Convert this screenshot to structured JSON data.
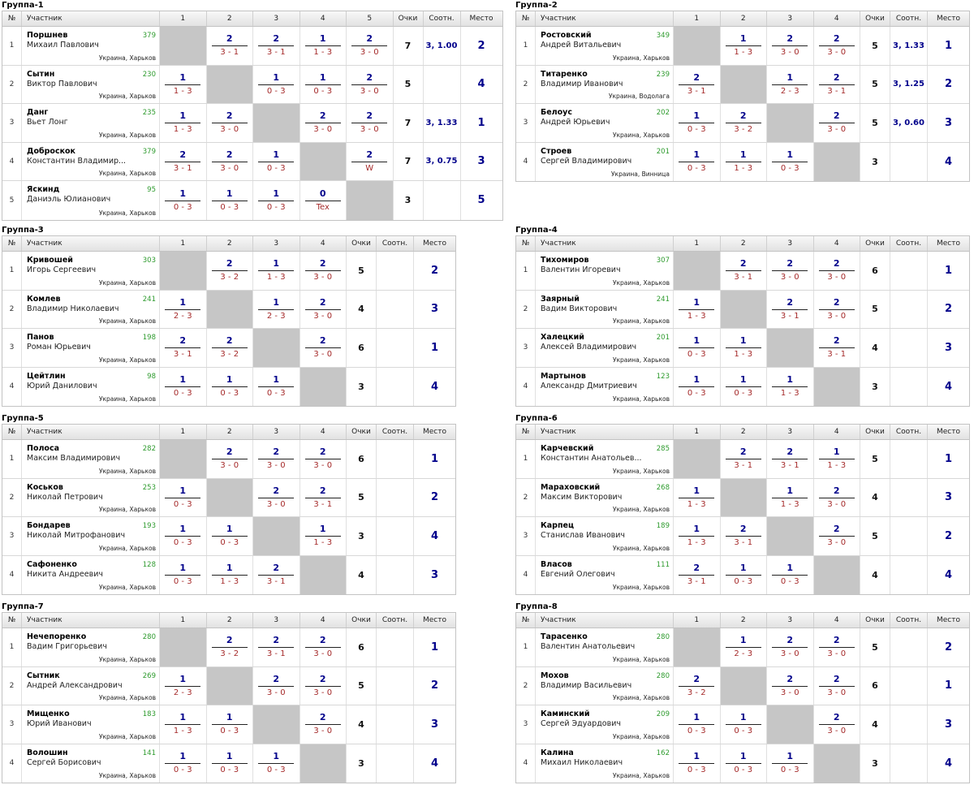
{
  "headers": {
    "num": "№",
    "participant": "Участник",
    "points": "Очки",
    "ratio": "Соотн.",
    "place": "Место"
  },
  "groups": [
    {
      "title": "Группа-1",
      "players": [
        {
          "num": "1",
          "surname": "Поршнев",
          "name": "Михаил Павлович",
          "rating": "379",
          "city": "Украина, Харьков",
          "games": [
            null,
            {
              "p": "2",
              "s": "3 - 1"
            },
            {
              "p": "2",
              "s": "3 - 1"
            },
            {
              "p": "1",
              "s": "1 - 3"
            },
            {
              "p": "2",
              "s": "3 - 0"
            }
          ],
          "points": "7",
          "ratio": "3, 1.00",
          "place": "2"
        },
        {
          "num": "2",
          "surname": "Сытин",
          "name": "Виктор Павлович",
          "rating": "230",
          "city": "Украина, Харьков",
          "games": [
            {
              "p": "1",
              "s": "1 - 3"
            },
            null,
            {
              "p": "1",
              "s": "0 - 3"
            },
            {
              "p": "1",
              "s": "0 - 3"
            },
            {
              "p": "2",
              "s": "3 - 0"
            }
          ],
          "points": "5",
          "ratio": "",
          "place": "4"
        },
        {
          "num": "3",
          "surname": "Данг",
          "name": "Вьет Лонг",
          "rating": "235",
          "city": "Украина, Харьков",
          "games": [
            {
              "p": "1",
              "s": "1 - 3"
            },
            {
              "p": "2",
              "s": "3 - 0"
            },
            null,
            {
              "p": "2",
              "s": "3 - 0"
            },
            {
              "p": "2",
              "s": "3 - 0"
            }
          ],
          "points": "7",
          "ratio": "3, 1.33",
          "place": "1"
        },
        {
          "num": "4",
          "surname": "Доброскок",
          "name": "Константин Владимир...",
          "rating": "379",
          "city": "Украина, Харьков",
          "games": [
            {
              "p": "2",
              "s": "3 - 1"
            },
            {
              "p": "2",
              "s": "3 - 0"
            },
            {
              "p": "1",
              "s": "0 - 3"
            },
            null,
            {
              "p": "2",
              "s": "W"
            }
          ],
          "points": "7",
          "ratio": "3, 0.75",
          "place": "3"
        },
        {
          "num": "5",
          "surname": "Яскинд",
          "name": "Даниэль Юлианович",
          "rating": "95",
          "city": "Украина, Харьков",
          "games": [
            {
              "p": "1",
              "s": "0 - 3"
            },
            {
              "p": "1",
              "s": "0 - 3"
            },
            {
              "p": "1",
              "s": "0 - 3"
            },
            {
              "p": "0",
              "s": "Tex"
            },
            null
          ],
          "points": "3",
          "ratio": "",
          "place": "5"
        }
      ]
    },
    {
      "title": "Группа-2",
      "players": [
        {
          "num": "1",
          "surname": "Ростовский",
          "name": "Андрей Витальевич",
          "rating": "349",
          "city": "Украина, Харьков",
          "games": [
            null,
            {
              "p": "1",
              "s": "1 - 3"
            },
            {
              "p": "2",
              "s": "3 - 0"
            },
            {
              "p": "2",
              "s": "3 - 0"
            }
          ],
          "points": "5",
          "ratio": "3, 1.33",
          "place": "1"
        },
        {
          "num": "2",
          "surname": "Титаренко",
          "name": "Владимир Иванович",
          "rating": "239",
          "city": "Украина, Водолага",
          "games": [
            {
              "p": "2",
              "s": "3 - 1"
            },
            null,
            {
              "p": "1",
              "s": "2 - 3"
            },
            {
              "p": "2",
              "s": "3 - 1"
            }
          ],
          "points": "5",
          "ratio": "3, 1.25",
          "place": "2"
        },
        {
          "num": "3",
          "surname": "Белоус",
          "name": "Андрей Юрьевич",
          "rating": "202",
          "city": "Украина, Харьков",
          "games": [
            {
              "p": "1",
              "s": "0 - 3"
            },
            {
              "p": "2",
              "s": "3 - 2"
            },
            null,
            {
              "p": "2",
              "s": "3 - 0"
            }
          ],
          "points": "5",
          "ratio": "3, 0.60",
          "place": "3"
        },
        {
          "num": "4",
          "surname": "Строев",
          "name": "Сергей Владимирович",
          "rating": "201",
          "city": "Украина, Винница",
          "games": [
            {
              "p": "1",
              "s": "0 - 3"
            },
            {
              "p": "1",
              "s": "1 - 3"
            },
            {
              "p": "1",
              "s": "0 - 3"
            },
            null
          ],
          "points": "3",
          "ratio": "",
          "place": "4"
        }
      ]
    },
    {
      "title": "Группа-3",
      "players": [
        {
          "num": "1",
          "surname": "Кривошей",
          "name": "Игорь Сергеевич",
          "rating": "303",
          "city": "Украина, Харьков",
          "games": [
            null,
            {
              "p": "2",
              "s": "3 - 2"
            },
            {
              "p": "1",
              "s": "1 - 3"
            },
            {
              "p": "2",
              "s": "3 - 0"
            }
          ],
          "points": "5",
          "ratio": "",
          "place": "2"
        },
        {
          "num": "2",
          "surname": "Комлев",
          "name": "Владимир Николаевич",
          "rating": "241",
          "city": "Украина, Харьков",
          "games": [
            {
              "p": "1",
              "s": "2 - 3"
            },
            null,
            {
              "p": "1",
              "s": "2 - 3"
            },
            {
              "p": "2",
              "s": "3 - 0"
            }
          ],
          "points": "4",
          "ratio": "",
          "place": "3"
        },
        {
          "num": "3",
          "surname": "Панов",
          "name": "Роман Юрьевич",
          "rating": "198",
          "city": "Украина, Харьков",
          "games": [
            {
              "p": "2",
              "s": "3 - 1"
            },
            {
              "p": "2",
              "s": "3 - 2"
            },
            null,
            {
              "p": "2",
              "s": "3 - 0"
            }
          ],
          "points": "6",
          "ratio": "",
          "place": "1"
        },
        {
          "num": "4",
          "surname": "Цейтлин",
          "name": "Юрий Данилович",
          "rating": "98",
          "city": "Украина, Харьков",
          "games": [
            {
              "p": "1",
              "s": "0 - 3"
            },
            {
              "p": "1",
              "s": "0 - 3"
            },
            {
              "p": "1",
              "s": "0 - 3"
            },
            null
          ],
          "points": "3",
          "ratio": "",
          "place": "4"
        }
      ]
    },
    {
      "title": "Группа-4",
      "players": [
        {
          "num": "1",
          "surname": "Тихомиров",
          "name": "Валентин Игоревич",
          "rating": "307",
          "city": "Украина, Харьков",
          "games": [
            null,
            {
              "p": "2",
              "s": "3 - 1"
            },
            {
              "p": "2",
              "s": "3 - 0"
            },
            {
              "p": "2",
              "s": "3 - 0"
            }
          ],
          "points": "6",
          "ratio": "",
          "place": "1"
        },
        {
          "num": "2",
          "surname": "Заярный",
          "name": "Вадим Викторович",
          "rating": "241",
          "city": "Украина, Харьков",
          "games": [
            {
              "p": "1",
              "s": "1 - 3"
            },
            null,
            {
              "p": "2",
              "s": "3 - 1"
            },
            {
              "p": "2",
              "s": "3 - 0"
            }
          ],
          "points": "5",
          "ratio": "",
          "place": "2"
        },
        {
          "num": "3",
          "surname": "Халецкий",
          "name": "Алексей Владимирович",
          "rating": "201",
          "city": "Украина, Харьков",
          "games": [
            {
              "p": "1",
              "s": "0 - 3"
            },
            {
              "p": "1",
              "s": "1 - 3"
            },
            null,
            {
              "p": "2",
              "s": "3 - 1"
            }
          ],
          "points": "4",
          "ratio": "",
          "place": "3"
        },
        {
          "num": "4",
          "surname": "Мартынов",
          "name": "Александр Дмитриевич",
          "rating": "123",
          "city": "Украина, Харьков",
          "games": [
            {
              "p": "1",
              "s": "0 - 3"
            },
            {
              "p": "1",
              "s": "0 - 3"
            },
            {
              "p": "1",
              "s": "1 - 3"
            },
            null
          ],
          "points": "3",
          "ratio": "",
          "place": "4"
        }
      ]
    },
    {
      "title": "Группа-5",
      "players": [
        {
          "num": "1",
          "surname": "Полоса",
          "name": "Максим Владимирович",
          "rating": "282",
          "city": "Украина, Харьков",
          "games": [
            null,
            {
              "p": "2",
              "s": "3 - 0"
            },
            {
              "p": "2",
              "s": "3 - 0"
            },
            {
              "p": "2",
              "s": "3 - 0"
            }
          ],
          "points": "6",
          "ratio": "",
          "place": "1"
        },
        {
          "num": "2",
          "surname": "Коськов",
          "name": "Николай Петрович",
          "rating": "253",
          "city": "Украина, Харьков",
          "games": [
            {
              "p": "1",
              "s": "0 - 3"
            },
            null,
            {
              "p": "2",
              "s": "3 - 0"
            },
            {
              "p": "2",
              "s": "3 - 1"
            }
          ],
          "points": "5",
          "ratio": "",
          "place": "2"
        },
        {
          "num": "3",
          "surname": "Бондарев",
          "name": "Николай Митрофанович",
          "rating": "193",
          "city": "Украина, Харьков",
          "games": [
            {
              "p": "1",
              "s": "0 - 3"
            },
            {
              "p": "1",
              "s": "0 - 3"
            },
            null,
            {
              "p": "1",
              "s": "1 - 3"
            }
          ],
          "points": "3",
          "ratio": "",
          "place": "4"
        },
        {
          "num": "4",
          "surname": "Сафоненко",
          "name": "Никита Андреевич",
          "rating": "128",
          "city": "Украина, Харьков",
          "games": [
            {
              "p": "1",
              "s": "0 - 3"
            },
            {
              "p": "1",
              "s": "1 - 3"
            },
            {
              "p": "2",
              "s": "3 - 1"
            },
            null
          ],
          "points": "4",
          "ratio": "",
          "place": "3"
        }
      ]
    },
    {
      "title": "Группа-6",
      "players": [
        {
          "num": "1",
          "surname": "Карчевский",
          "name": "Константин Анатольев...",
          "rating": "285",
          "city": "Украина, Харьков",
          "games": [
            null,
            {
              "p": "2",
              "s": "3 - 1"
            },
            {
              "p": "2",
              "s": "3 - 1"
            },
            {
              "p": "1",
              "s": "1 - 3"
            }
          ],
          "points": "5",
          "ratio": "",
          "place": "1"
        },
        {
          "num": "2",
          "surname": "Мараховский",
          "name": "Максим Викторович",
          "rating": "268",
          "city": "Украина, Харьков",
          "games": [
            {
              "p": "1",
              "s": "1 - 3"
            },
            null,
            {
              "p": "1",
              "s": "1 - 3"
            },
            {
              "p": "2",
              "s": "3 - 0"
            }
          ],
          "points": "4",
          "ratio": "",
          "place": "3"
        },
        {
          "num": "3",
          "surname": "Карпец",
          "name": "Станислав Иванович",
          "rating": "189",
          "city": "Украина, Харьков",
          "games": [
            {
              "p": "1",
              "s": "1 - 3"
            },
            {
              "p": "2",
              "s": "3 - 1"
            },
            null,
            {
              "p": "2",
              "s": "3 - 0"
            }
          ],
          "points": "5",
          "ratio": "",
          "place": "2"
        },
        {
          "num": "4",
          "surname": "Власов",
          "name": "Евгений Олегович",
          "rating": "111",
          "city": "Украина, Харьков",
          "games": [
            {
              "p": "2",
              "s": "3 - 1"
            },
            {
              "p": "1",
              "s": "0 - 3"
            },
            {
              "p": "1",
              "s": "0 - 3"
            },
            null
          ],
          "points": "4",
          "ratio": "",
          "place": "4"
        }
      ]
    },
    {
      "title": "Группа-7",
      "players": [
        {
          "num": "1",
          "surname": "Нечепоренко",
          "name": "Вадим Григорьевич",
          "rating": "280",
          "city": "Украина, Харьков",
          "games": [
            null,
            {
              "p": "2",
              "s": "3 - 2"
            },
            {
              "p": "2",
              "s": "3 - 1"
            },
            {
              "p": "2",
              "s": "3 - 0"
            }
          ],
          "points": "6",
          "ratio": "",
          "place": "1"
        },
        {
          "num": "2",
          "surname": "Сытник",
          "name": "Андрей Александрович",
          "rating": "269",
          "city": "Украина, Харьков",
          "games": [
            {
              "p": "1",
              "s": "2 - 3"
            },
            null,
            {
              "p": "2",
              "s": "3 - 0"
            },
            {
              "p": "2",
              "s": "3 - 0"
            }
          ],
          "points": "5",
          "ratio": "",
          "place": "2"
        },
        {
          "num": "3",
          "surname": "Мищенко",
          "name": "Юрий Иванович",
          "rating": "183",
          "city": "Украина, Харьков",
          "games": [
            {
              "p": "1",
              "s": "1 - 3"
            },
            {
              "p": "1",
              "s": "0 - 3"
            },
            null,
            {
              "p": "2",
              "s": "3 - 0"
            }
          ],
          "points": "4",
          "ratio": "",
          "place": "3"
        },
        {
          "num": "4",
          "surname": "Волошин",
          "name": "Сергей Борисович",
          "rating": "141",
          "city": "Украина, Харьков",
          "games": [
            {
              "p": "1",
              "s": "0 - 3"
            },
            {
              "p": "1",
              "s": "0 - 3"
            },
            {
              "p": "1",
              "s": "0 - 3"
            },
            null
          ],
          "points": "3",
          "ratio": "",
          "place": "4"
        }
      ]
    },
    {
      "title": "Группа-8",
      "players": [
        {
          "num": "1",
          "surname": "Тарасенко",
          "name": "Валентин Анатольевич",
          "rating": "280",
          "city": "Украина, Харьков",
          "games": [
            null,
            {
              "p": "1",
              "s": "2 - 3"
            },
            {
              "p": "2",
              "s": "3 - 0"
            },
            {
              "p": "2",
              "s": "3 - 0"
            }
          ],
          "points": "5",
          "ratio": "",
          "place": "2"
        },
        {
          "num": "2",
          "surname": "Мохов",
          "name": "Владимир Васильевич",
          "rating": "280",
          "city": "Украина, Харьков",
          "games": [
            {
              "p": "2",
              "s": "3 - 2"
            },
            null,
            {
              "p": "2",
              "s": "3 - 0"
            },
            {
              "p": "2",
              "s": "3 - 0"
            }
          ],
          "points": "6",
          "ratio": "",
          "place": "1"
        },
        {
          "num": "3",
          "surname": "Каминский",
          "name": "Сергей Эдуардович",
          "rating": "209",
          "city": "Украина, Харьков",
          "games": [
            {
              "p": "1",
              "s": "0 - 3"
            },
            {
              "p": "1",
              "s": "0 - 3"
            },
            null,
            {
              "p": "2",
              "s": "3 - 0"
            }
          ],
          "points": "4",
          "ratio": "",
          "place": "3"
        },
        {
          "num": "4",
          "surname": "Калина",
          "name": "Михаил Николаевич",
          "rating": "162",
          "city": "Украина, Харьков",
          "games": [
            {
              "p": "1",
              "s": "0 - 3"
            },
            {
              "p": "1",
              "s": "0 - 3"
            },
            {
              "p": "1",
              "s": "0 - 3"
            },
            null
          ],
          "points": "3",
          "ratio": "",
          "place": "4"
        }
      ]
    }
  ]
}
